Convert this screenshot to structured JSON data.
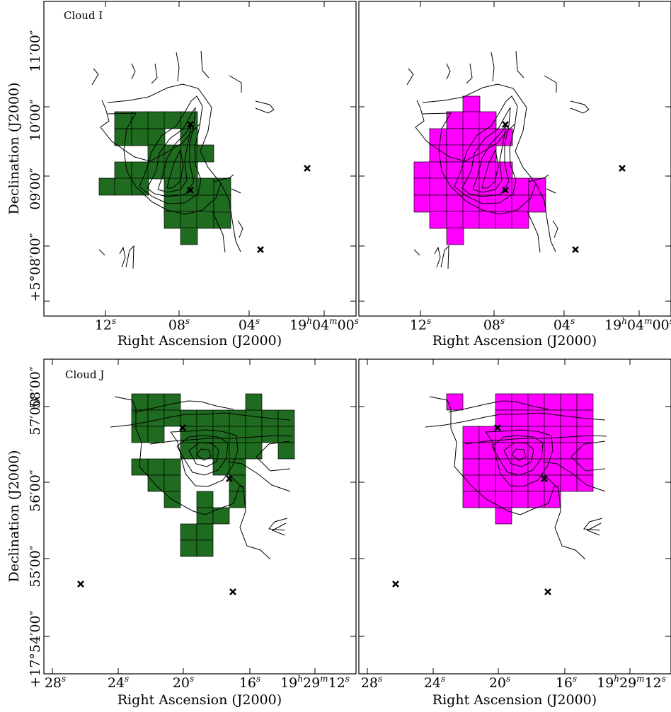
{
  "figure": {
    "xlabel": "Right Ascension (J2000)",
    "ylabel": "Declination (J2000)"
  },
  "panels": [
    {
      "label": "Cloud I",
      "x_ticks": [
        "12s",
        "08s",
        "04s",
        "19h04m00s"
      ],
      "y_ticks": [
        "+5°08′00″",
        "09′00″",
        "10′00″",
        "11′00″"
      ],
      "fill_color": "#1f6b1f",
      "markers": 3
    },
    {
      "label": "",
      "x_ticks": [
        "12s",
        "08s",
        "04s",
        "19h04m00s"
      ],
      "y_ticks": [],
      "fill_color": "#ff00ff",
      "markers": 3
    },
    {
      "label": "Cloud J",
      "x_ticks": [
        "28s",
        "24s",
        "20s",
        "16s",
        "19h29m12s"
      ],
      "y_ticks": [
        "+17°54′00″",
        "55′00″",
        "56′00″",
        "57′00″",
        "58′00″"
      ],
      "fill_color": "#1f6b1f",
      "markers": 3
    },
    {
      "label": "",
      "x_ticks": [
        "28s",
        "24s",
        "20s",
        "16s",
        "19h29m12s"
      ],
      "y_ticks": [],
      "fill_color": "#ff00ff",
      "markers": 3
    }
  ],
  "chart_data": [
    {
      "type": "heatmap",
      "title": "Cloud I",
      "xlabel": "Right Ascension (J2000)",
      "ylabel": "Declination (J2000)",
      "x_tick_labels": [
        "12s",
        "08s",
        "04s",
        "19h04m00s"
      ],
      "y_tick_labels": [
        "+5°08′00″",
        "09′00″",
        "10′00″",
        "11′00″"
      ],
      "filled_pixel_color": "green"
    },
    {
      "type": "heatmap",
      "title": "",
      "xlabel": "Right Ascension (J2000)",
      "x_tick_labels": [
        "12s",
        "08s",
        "04s",
        "19h04m00s"
      ],
      "filled_pixel_color": "magenta"
    },
    {
      "type": "heatmap",
      "title": "Cloud J",
      "xlabel": "Right Ascension (J2000)",
      "ylabel": "Declination (J2000)",
      "x_tick_labels": [
        "28s",
        "24s",
        "20s",
        "16s",
        "19h29m12s"
      ],
      "y_tick_labels": [
        "+17°54′00″",
        "55′00″",
        "56′00″",
        "57′00″",
        "58′00″"
      ],
      "filled_pixel_color": "green"
    },
    {
      "type": "heatmap",
      "title": "",
      "xlabel": "Right Ascension (J2000)",
      "x_tick_labels": [
        "28s",
        "24s",
        "20s",
        "16s",
        "19h29m12s"
      ],
      "filled_pixel_color": "magenta"
    }
  ]
}
